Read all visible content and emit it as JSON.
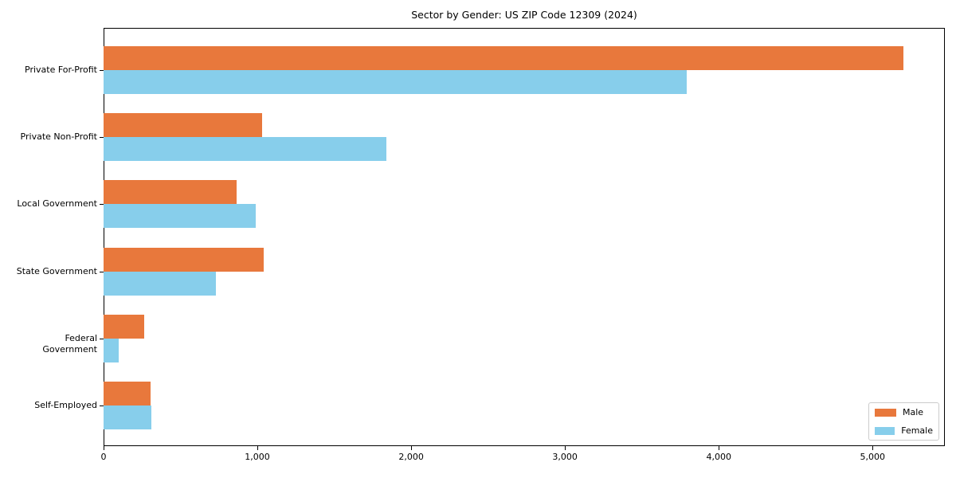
{
  "title": "Sector by Gender: US ZIP Code 12309 (2024)",
  "chart_data": {
    "type": "bar",
    "orientation": "horizontal",
    "title": "Sector by Gender: US ZIP Code 12309 (2024)",
    "xlabel": "",
    "ylabel": "",
    "categories": [
      "Private For-Profit",
      "Private Non-Profit",
      "Local Government",
      "State Government",
      "Federal Government",
      "Self-Employed"
    ],
    "series": [
      {
        "name": "Male",
        "color": "#E8783C",
        "values": [
          5200,
          1030,
          865,
          1040,
          265,
          305
        ]
      },
      {
        "name": "Female",
        "color": "#87CEEB",
        "values": [
          3790,
          1840,
          990,
          730,
          100,
          310
        ]
      }
    ],
    "xlim": [
      0,
      5470
    ],
    "xticks": [
      0,
      1000,
      2000,
      3000,
      4000,
      5000
    ],
    "xtick_labels": [
      "0",
      "1,000",
      "2,000",
      "3,000",
      "4,000",
      "5,000"
    ],
    "grid": false,
    "legend_position": "lower right"
  }
}
